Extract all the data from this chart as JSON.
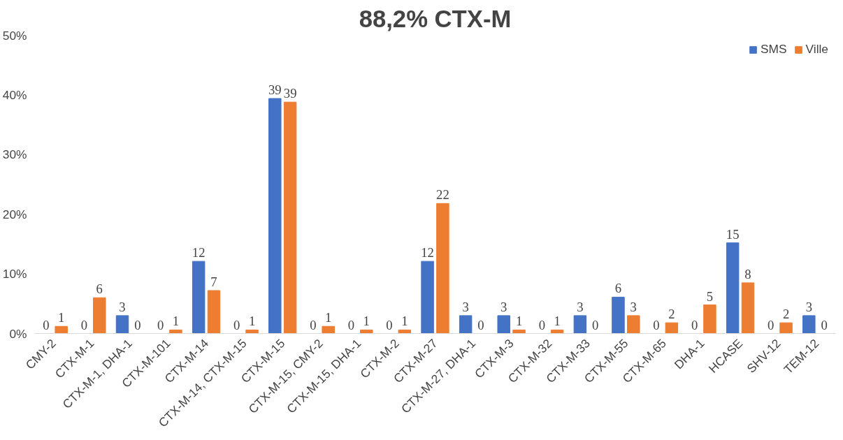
{
  "chart_data": {
    "type": "bar",
    "title": "88,2% CTX-M",
    "categories": [
      "CMY-2",
      "CTX-M-1",
      "CTX-M-1, DHA-1",
      "CTX-M-101",
      "CTX-M-14",
      "CTX-M-14, CTX-M-15",
      "CTX-M-15",
      "CTX-M-15, CMY-2",
      "CTX-M-15, DHA-1",
      "CTX-M-2",
      "CTX-M-27",
      "CTX-M-27, DHA-1",
      "CTX-M-3",
      "CTX-M-32",
      "CTX-M-33",
      "CTX-M-55",
      "CTX-M-65",
      "DHA-1",
      "HCASE",
      "SHV-12",
      "TEM-12"
    ],
    "series": [
      {
        "name": "SMS",
        "color": "#4472c4",
        "values": [
          0,
          0,
          3.0,
          0,
          12.1,
          0,
          39.4,
          0,
          0,
          0,
          12.1,
          3.0,
          3.0,
          0,
          3.0,
          6.1,
          0,
          0,
          15.2,
          0,
          3.0
        ],
        "value_labels": [
          "0",
          "0",
          "3",
          "0",
          "12",
          "0",
          "39",
          "0",
          "0",
          "0",
          "12",
          "3",
          "3",
          "0",
          "3",
          "6",
          "0",
          "0",
          "15",
          "0",
          "3"
        ]
      },
      {
        "name": "Ville",
        "color": "#ed7d31",
        "values": [
          1.2,
          6.0,
          0,
          0.6,
          7.2,
          0.6,
          38.8,
          1.2,
          0.6,
          0.6,
          21.8,
          0,
          0.6,
          0.6,
          0,
          3.0,
          1.8,
          4.8,
          8.5,
          1.8,
          0
        ],
        "value_labels": [
          "1",
          "6",
          "0",
          "1",
          "7",
          "1",
          "39",
          "1",
          "1",
          "1",
          "22",
          "0",
          "1",
          "1",
          "0",
          "3",
          "2",
          "5",
          "8",
          "2",
          "0"
        ]
      }
    ],
    "ylim": [
      0,
      50
    ],
    "yticks": [
      {
        "value": 0,
        "label": "0%"
      },
      {
        "value": 10,
        "label": "10%"
      },
      {
        "value": 20,
        "label": "20%"
      },
      {
        "value": 30,
        "label": "30%"
      },
      {
        "value": 40,
        "label": "40%"
      },
      {
        "value": 50,
        "label": "50%"
      }
    ],
    "legend": "top right"
  }
}
